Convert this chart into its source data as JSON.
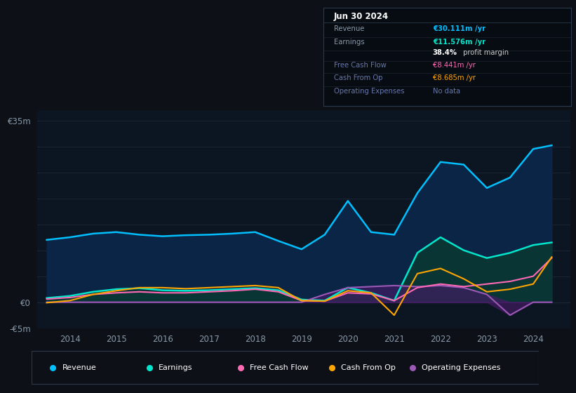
{
  "bg_color": "#0d1117",
  "plot_bg_color": "#0c1622",
  "grid_color": "#1a2535",
  "axis_label_color": "#8899aa",
  "ylim": [
    -5,
    37
  ],
  "series": {
    "revenue": {
      "color": "#00bfff",
      "fill_color": "#0a2545",
      "fill_alpha": 1.0,
      "label": "Revenue",
      "lw": 1.8
    },
    "earnings": {
      "color": "#00e5cc",
      "fill_color": "#0a3535",
      "fill_alpha": 1.0,
      "label": "Earnings",
      "lw": 1.8
    },
    "fcf": {
      "color": "#ff69b4",
      "label": "Free Cash Flow",
      "lw": 1.5
    },
    "cashfromop": {
      "color": "#ffa500",
      "label": "Cash From Op",
      "lw": 1.5
    },
    "opex": {
      "color": "#9b59b6",
      "fill_color": "#4b1a6a",
      "fill_alpha": 0.6,
      "label": "Operating Expenses",
      "lw": 1.5
    }
  },
  "infobox": {
    "title": "Jun 30 2024",
    "rows": [
      {
        "label": "Revenue",
        "value": "€30.111m /yr",
        "value_color": "#00bfff",
        "label_color": "#8899aa"
      },
      {
        "label": "Earnings",
        "value": "€11.576m /yr",
        "value_color": "#00e5cc",
        "label_color": "#8899aa"
      },
      {
        "label": "",
        "value": "38.4% profit margin",
        "value_color": "#ffffff",
        "label_color": "#8899aa",
        "bold_prefix": "38.4%"
      },
      {
        "label": "Free Cash Flow",
        "value": "€8.441m /yr",
        "value_color": "#ff69b4",
        "label_color": "#6677aa"
      },
      {
        "label": "Cash From Op",
        "value": "€8.685m /yr",
        "value_color": "#ffa500",
        "label_color": "#6677aa"
      },
      {
        "label": "Operating Expenses",
        "value": "No data",
        "value_color": "#6677aa",
        "label_color": "#6677aa"
      }
    ]
  },
  "x_years": [
    2013.5,
    2014.0,
    2014.5,
    2015.0,
    2015.5,
    2016.0,
    2016.5,
    2017.0,
    2017.5,
    2018.0,
    2018.5,
    2019.0,
    2019.5,
    2020.0,
    2020.5,
    2021.0,
    2021.5,
    2022.0,
    2022.5,
    2023.0,
    2023.5,
    2024.0,
    2024.4
  ],
  "revenue": [
    12.0,
    12.5,
    13.2,
    13.5,
    13.0,
    12.7,
    12.9,
    13.0,
    13.2,
    13.5,
    11.8,
    10.2,
    13.0,
    19.5,
    13.5,
    13.0,
    21.0,
    27.0,
    26.5,
    22.0,
    24.0,
    29.5,
    30.2
  ],
  "earnings": [
    0.8,
    1.2,
    2.0,
    2.5,
    2.7,
    2.3,
    2.2,
    2.3,
    2.5,
    2.7,
    2.3,
    0.5,
    0.3,
    2.8,
    1.8,
    0.3,
    9.5,
    12.5,
    10.0,
    8.5,
    9.5,
    11.0,
    11.5
  ],
  "fcf": [
    0.6,
    0.9,
    1.5,
    1.8,
    2.0,
    1.8,
    1.8,
    2.0,
    2.2,
    2.5,
    2.0,
    0.3,
    0.2,
    1.8,
    1.6,
    0.3,
    2.8,
    3.5,
    3.0,
    3.5,
    4.0,
    5.0,
    8.5
  ],
  "cashfromop": [
    -0.1,
    0.3,
    1.5,
    2.2,
    2.8,
    2.8,
    2.6,
    2.8,
    3.0,
    3.2,
    2.8,
    0.3,
    0.2,
    2.2,
    1.8,
    -2.5,
    5.5,
    6.5,
    4.5,
    2.0,
    2.5,
    3.5,
    8.7
  ],
  "opex": [
    0.0,
    0.0,
    0.0,
    0.0,
    0.0,
    0.0,
    0.0,
    0.0,
    0.0,
    0.0,
    0.0,
    0.0,
    1.5,
    2.8,
    3.0,
    3.2,
    3.0,
    3.2,
    2.8,
    1.5,
    -2.5,
    0.0,
    0.0
  ],
  "xticks": [
    2014,
    2015,
    2016,
    2017,
    2018,
    2019,
    2020,
    2021,
    2022,
    2023,
    2024
  ],
  "legend_items": [
    {
      "label": "Revenue",
      "color": "#00bfff"
    },
    {
      "label": "Earnings",
      "color": "#00e5cc"
    },
    {
      "label": "Free Cash Flow",
      "color": "#ff69b4"
    },
    {
      "label": "Cash From Op",
      "color": "#ffa500"
    },
    {
      "label": "Operating Expenses",
      "color": "#9b59b6"
    }
  ]
}
